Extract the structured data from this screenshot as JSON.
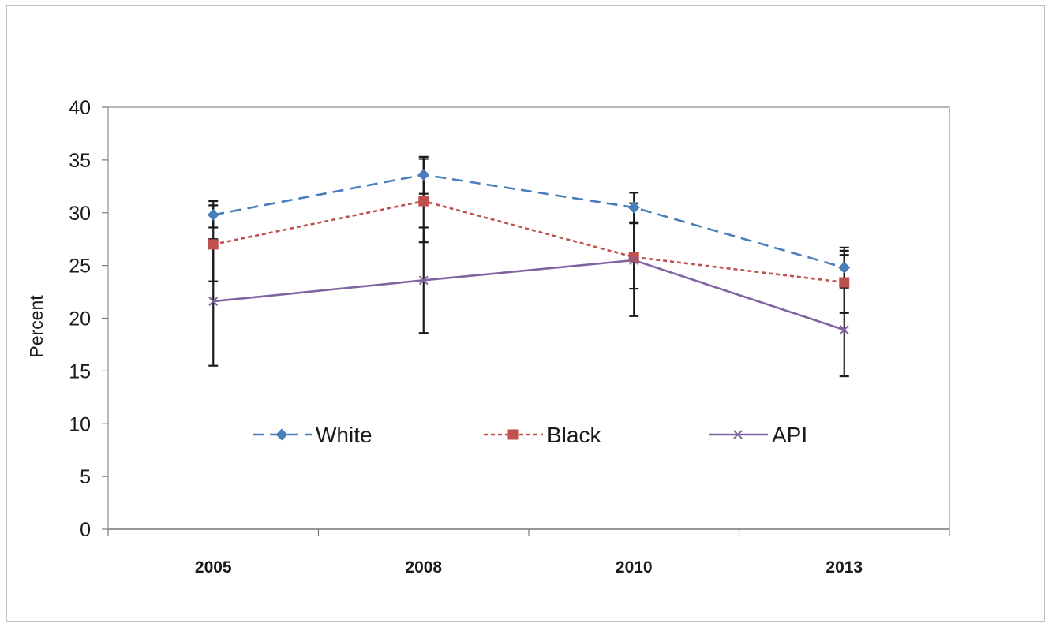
{
  "chart_data": {
    "type": "line",
    "title": "",
    "xlabel": "",
    "ylabel": "Percent",
    "ylim": [
      0,
      40
    ],
    "yticks": [
      0,
      5,
      10,
      15,
      20,
      25,
      30,
      35,
      40
    ],
    "categories": [
      "2005",
      "2008",
      "2010",
      "2013"
    ],
    "grid": false,
    "legend_position": "center",
    "series": [
      {
        "name": "White",
        "color": "#4a7ebb",
        "line_style": "long-dash",
        "marker": "diamond",
        "values": [
          29.8,
          33.6,
          30.5,
          24.8
        ],
        "error_low": [
          28.6,
          31.8,
          29.1,
          22.9
        ],
        "error_high": [
          31.1,
          35.3,
          31.9,
          26.7
        ]
      },
      {
        "name": "Black",
        "color": "#c0504d",
        "line_style": "short-dash",
        "marker": "square",
        "values": [
          27.0,
          31.1,
          25.8,
          23.4
        ],
        "error_low": [
          23.5,
          27.2,
          22.8,
          20.5
        ],
        "error_high": [
          30.7,
          35.1,
          29.0,
          26.4
        ]
      },
      {
        "name": "API",
        "color": "#8064a2",
        "line_style": "solid",
        "marker": "x",
        "values": [
          21.6,
          23.6,
          25.5,
          18.9
        ],
        "error_low": [
          15.5,
          18.6,
          20.2,
          14.5
        ],
        "error_high": [
          27.5,
          28.6,
          30.9,
          26.0
        ]
      }
    ]
  }
}
